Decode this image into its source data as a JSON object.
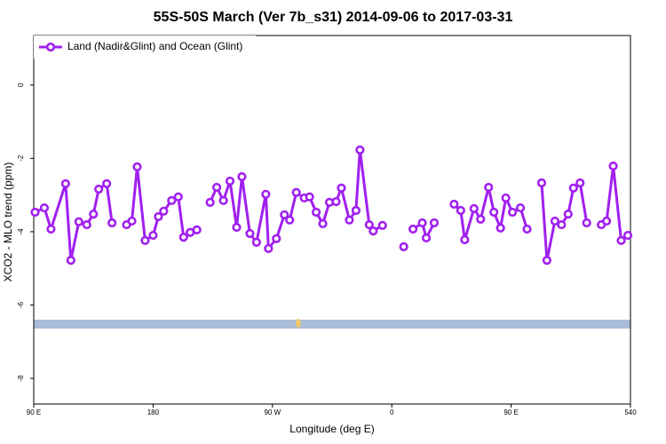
{
  "chart_data": {
    "type": "line",
    "title": "55S-50S March (Ver 7b_s31)   2014-09-06 to 2017-03-31",
    "x_label": "Longitude (deg E)",
    "y_label": "XCO2 - MLO trend (ppm)",
    "xlim": [
      90,
      540
    ],
    "ylim": [
      -8.7,
      1.35
    ],
    "xticks": [
      {
        "value": 90,
        "label": "90 E"
      },
      180,
      {
        "value": 270,
        "label": "90 W"
      },
      {
        "value": 360,
        "label": "0"
      },
      {
        "value": 450,
        "label": "90 E"
      },
      540
    ],
    "yticks": [
      0,
      -2,
      -4,
      -6,
      -8
    ],
    "legend": "top-left",
    "x": [
      91,
      98,
      103,
      114,
      118,
      124,
      130,
      135,
      139,
      145,
      149,
      155,
      160,
      164,
      168,
      174,
      180,
      184,
      188,
      194,
      199,
      203,
      208,
      213,
      218,
      223,
      228,
      233,
      238,
      243,
      247,
      253,
      258,
      265,
      267,
      273,
      279,
      283,
      288,
      294,
      298,
      303,
      308,
      313,
      318,
      322,
      328,
      333,
      336,
      343,
      346,
      353,
      361,
      369,
      373,
      376,
      383,
      386,
      392,
      399,
      407,
      412,
      415,
      422,
      427,
      433,
      437,
      442,
      446,
      451,
      457,
      462,
      467,
      473,
      477,
      483,
      488,
      493,
      497,
      502,
      507,
      512,
      518,
      522,
      527,
      533,
      538
    ],
    "series": [
      {
        "name": "Land (Nadir&Glint) and Ocean (Glint)",
        "color": "#a020f0",
        "values": [
          -3.47,
          -3.35,
          -3.93,
          -2.69,
          -4.78,
          -3.73,
          -3.81,
          -3.52,
          -2.84,
          -2.69,
          -3.76,
          null,
          -3.81,
          -3.71,
          -2.23,
          -4.24,
          -4.1,
          -3.59,
          -3.44,
          -3.15,
          -3.05,
          -4.15,
          -4.02,
          -3.95,
          null,
          -3.2,
          -2.79,
          -3.15,
          -2.62,
          -3.88,
          -2.5,
          -4.05,
          -4.29,
          -2.98,
          -4.46,
          -4.19,
          -3.54,
          -3.68,
          -2.93,
          -3.08,
          -3.05,
          -3.47,
          -3.78,
          -3.2,
          -3.18,
          -2.81,
          -3.68,
          -3.42,
          -1.77,
          -3.81,
          -3.98,
          -3.83,
          null,
          -4.41,
          null,
          -3.93,
          -3.76,
          -4.17,
          -3.76,
          null,
          -3.25,
          -3.42,
          -4.22,
          -3.37,
          -3.66,
          -2.79,
          -3.47,
          -3.9,
          -3.08,
          -3.47,
          -3.35,
          -3.93,
          null,
          -2.67,
          -4.78,
          -3.71,
          -3.81,
          -3.52,
          -2.81,
          -2.67,
          -3.76,
          null,
          -3.81,
          -3.71,
          -2.21,
          -4.24,
          -4.1
        ]
      }
    ]
  }
}
